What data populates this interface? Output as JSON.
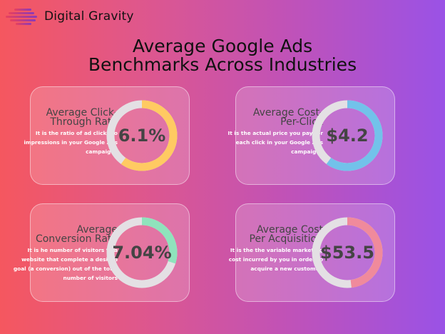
{
  "brand": {
    "name_part1": "Digital",
    "dot": ".",
    "name_part2": "Gravity"
  },
  "title": {
    "line1": "Average Google Ads",
    "line2": "Benchmarks Across Industries"
  },
  "cards": [
    {
      "head1": "Average Click-",
      "head2": "Through Rate",
      "desc": "It is the ratio of ad clicks to impressions in your Google Ads campaigns",
      "value": "6.1%",
      "fraction": 0.6,
      "color": "#ffca62"
    },
    {
      "head1": "Average Cost-",
      "head2": "Per-Click",
      "desc": "It is the actual price you pay for each click in your Google Ads campaigns",
      "value": "$4.2",
      "fraction": 0.6,
      "color": "#72c2ea"
    },
    {
      "head1": "Average",
      "head2": "Conversion Rate",
      "desc": "It is he number of visitors to a website that complete a desired goal (a conversion) out of the total number of visitors",
      "value": "7.04%",
      "fraction": 0.3,
      "color": "#8fe3bc"
    },
    {
      "head1": "Average Cost",
      "head2": "Per Acquisition",
      "desc": "It is the the variable marketing cost incurred by you in order to acquire a new customer.",
      "value": "$53.5",
      "fraction": 0.48,
      "color": "#f08a9c"
    }
  ],
  "colors": {
    "track": "#e4e0e4"
  }
}
